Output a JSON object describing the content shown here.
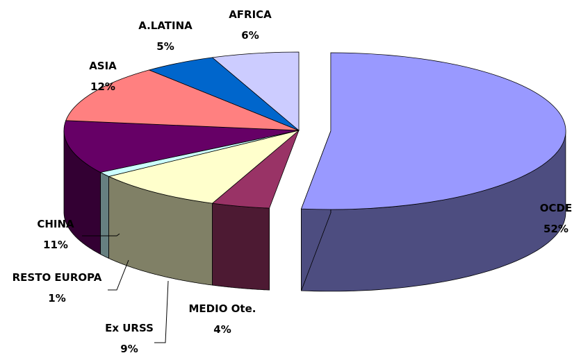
{
  "chart_data": {
    "type": "pie",
    "style": "3d-exploded",
    "title": "",
    "unit": "%",
    "slices": [
      {
        "name": "OCDE",
        "value": 52,
        "label": "OCDE",
        "pct": "52%",
        "color": "#9999ff",
        "side_color": "#4d4d80"
      },
      {
        "name": "MEDIO Ote.",
        "value": 4,
        "label": "MEDIO Ote.",
        "pct": "4%",
        "color": "#993366",
        "side_color": "#4d1a33"
      },
      {
        "name": "Ex URSS",
        "value": 9,
        "label": "Ex URSS",
        "pct": "9%",
        "color": "#ffffcc",
        "side_color": "#808066"
      },
      {
        "name": "RESTO EUROPA",
        "value": 1,
        "label": "RESTO EUROPA",
        "pct": "1%",
        "color": "#ccffff",
        "side_color": "#668080"
      },
      {
        "name": "CHINA",
        "value": 11,
        "label": "CHINA",
        "pct": "11%",
        "color": "#660066",
        "side_color": "#330033"
      },
      {
        "name": "ASIA",
        "value": 12,
        "label": "ASIA",
        "pct": "12%",
        "color": "#ff8080",
        "side_color": "#804040"
      },
      {
        "name": "A.LATINA",
        "value": 5,
        "label": "A.LATINA",
        "pct": "5%",
        "color": "#0066cc",
        "side_color": "#003366"
      },
      {
        "name": "AFRICA",
        "value": 6,
        "label": "AFRICA",
        "pct": "6%",
        "color": "#ccccff",
        "side_color": "#666680"
      }
    ]
  }
}
